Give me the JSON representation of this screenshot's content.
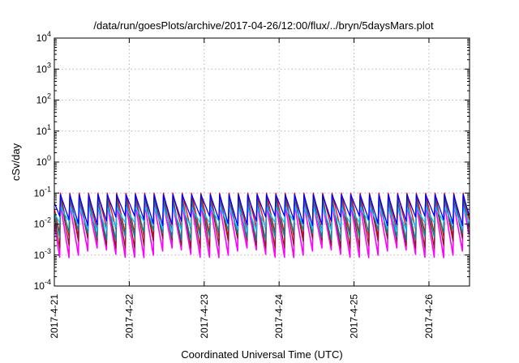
{
  "chart_data": {
    "type": "line",
    "title": "/data/run/goesPlots/archive/2017-04-26/12:00/flux/../bryn/5daysMars.plot",
    "xlabel": "Coordinated Universal Time (UTC)",
    "ylabel": "cSv/day",
    "yscale": "log",
    "ylim": [
      0.0001,
      10000
    ],
    "y_ticks": [
      {
        "base": "10",
        "exp": "-4",
        "value": 0.0001
      },
      {
        "base": "10",
        "exp": "-3",
        "value": 0.001
      },
      {
        "base": "10",
        "exp": "-2",
        "value": 0.01
      },
      {
        "base": "10",
        "exp": "-1",
        "value": 0.1
      },
      {
        "base": "10",
        "exp": "0",
        "value": 1
      },
      {
        "base": "10",
        "exp": "1",
        "value": 10
      },
      {
        "base": "10",
        "exp": "2",
        "value": 100
      },
      {
        "base": "10",
        "exp": "3",
        "value": 1000
      },
      {
        "base": "10",
        "exp": "4",
        "value": 10000
      }
    ],
    "x_ticks": [
      "2017-4-21",
      "2017-4-22",
      "2017-4-23",
      "2017-4-24",
      "2017-4-25",
      "2017-4-26"
    ],
    "xlim": [
      "2017-04-21T00:00",
      "2017-04-26T13:00"
    ],
    "grid": true,
    "legend": "none",
    "sawtooth_period_hours": 3,
    "series": [
      {
        "color": "#ff0000",
        "peak": 0.1,
        "trough": 0.005
      },
      {
        "color": "#ff00ff",
        "peak": 0.045,
        "trough": 0.0011
      },
      {
        "color": "#8b1a1a",
        "peak": 0.08,
        "trough": 0.0022
      },
      {
        "color": "#008b8b",
        "peak": 0.06,
        "trough": 0.004
      },
      {
        "color": "#00c8ff",
        "peak": 0.035,
        "trough": 0.008
      },
      {
        "color": "#0000ff",
        "peak": 0.09,
        "trough": 0.012
      }
    ]
  }
}
